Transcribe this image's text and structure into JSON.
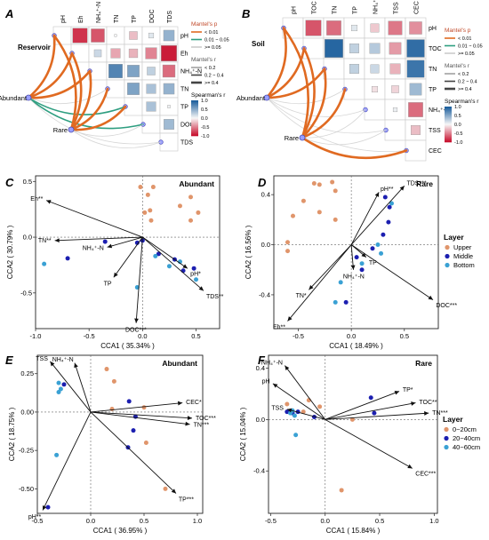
{
  "figure": {
    "panel_labels": [
      "A",
      "B",
      "C",
      "D",
      "E",
      "F"
    ]
  },
  "corr_panels": [
    {
      "label": "A",
      "subset_label": "Reservoir",
      "variables": [
        "pH",
        "Eh",
        "NH₄⁺-N",
        "TN",
        "TP",
        "DOC",
        "TDS"
      ],
      "row_labels": [
        "pH",
        "Eh",
        "NH₄⁺-N",
        "TN",
        "TP",
        "DOC",
        "TDS"
      ],
      "group_nodes": [
        "Abundant",
        "Rare"
      ],
      "spearman": [
        [
          0,
          -0.85,
          -0.7,
          0.02,
          -0.25,
          0.1,
          0.45
        ],
        [
          0,
          0,
          0.2,
          -0.35,
          -0.3,
          -0.5,
          -0.95
        ],
        [
          0,
          0,
          0,
          0.75,
          0.55,
          0.25,
          -0.6
        ],
        [
          0,
          0,
          0,
          0,
          0.55,
          0.35,
          0.45
        ],
        [
          0,
          0,
          0,
          0,
          0,
          0.35,
          0.03
        ],
        [
          0,
          0,
          0,
          0,
          0,
          0,
          0.4
        ],
        [
          0,
          0,
          0,
          0,
          0,
          0,
          0
        ]
      ],
      "mantel_links": [
        {
          "from": "Abundant",
          "to": "pH",
          "p": "<0.01",
          "r": ">=0.4"
        },
        {
          "from": "Abundant",
          "to": "Eh",
          "p": "<0.01",
          "r": ">=0.4"
        },
        {
          "from": "Abundant",
          "to": "NH₄⁺-N",
          "p": "<0.01",
          "r": ">=0.4"
        },
        {
          "from": "Abundant",
          "to": "TN",
          "p": ">=0.05",
          "r": "<0.2"
        },
        {
          "from": "Abundant",
          "to": "TP",
          "p": "0.01-0.05",
          "r": "0.2-0.4"
        },
        {
          "from": "Abundant",
          "to": "DOC",
          "p": "0.01-0.05",
          "r": "0.2-0.4"
        },
        {
          "from": "Abundant",
          "to": "TDS",
          "p": ">=0.05",
          "r": "<0.2"
        },
        {
          "from": "Rare",
          "to": "pH",
          "p": "<0.01",
          "r": ">=0.4"
        },
        {
          "from": "Rare",
          "to": "Eh",
          "p": "<0.01",
          "r": ">=0.4"
        },
        {
          "from": "Rare",
          "to": "NH₄⁺-N",
          "p": "<0.01",
          "r": ">=0.4"
        },
        {
          "from": "Rare",
          "to": "TN",
          "p": "<0.01",
          "r": ">=0.4"
        },
        {
          "from": "Rare",
          "to": "TP",
          "p": "<0.01",
          "r": ">=0.4"
        },
        {
          "from": "Rare",
          "to": "DOC",
          "p": ">=0.05",
          "r": "<0.2"
        },
        {
          "from": "Rare",
          "to": "TDS",
          "p": ">=0.05",
          "r": "<0.2"
        }
      ]
    },
    {
      "label": "B",
      "subset_label": "Soil",
      "variables": [
        "pH",
        "TOC",
        "TN",
        "TP",
        "NH₄⁺-N",
        "TSS",
        "CEC"
      ],
      "row_labels": [
        "pH",
        "TOC",
        "TN",
        "TP",
        "NH₄⁺-N",
        "TSS",
        "CEC"
      ],
      "group_nodes": [
        "Abundant",
        "Rare"
      ],
      "spearman": [
        [
          0,
          -0.7,
          -0.6,
          0.1,
          -0.2,
          -0.55,
          -0.45
        ],
        [
          0,
          0,
          0.95,
          0.25,
          0.3,
          -0.4,
          0.9
        ],
        [
          0,
          0,
          0,
          0.25,
          0.2,
          -0.3,
          0.85
        ],
        [
          0,
          0,
          0,
          0,
          -0.1,
          -0.15,
          0.4
        ],
        [
          0,
          0,
          0,
          0,
          0,
          0.05,
          -0.6
        ],
        [
          0,
          0,
          0,
          0,
          0,
          0,
          -0.25
        ],
        [
          0,
          0,
          0,
          0,
          0,
          0,
          0
        ]
      ],
      "mantel_links": [
        {
          "from": "Abundant",
          "to": "pH",
          "p": "<0.01",
          "r": ">=0.4"
        },
        {
          "from": "Abundant",
          "to": "TOC",
          "p": "<0.01",
          "r": ">=0.4"
        },
        {
          "from": "Abundant",
          "to": "TN",
          "p": "<0.01",
          "r": ">=0.4"
        },
        {
          "from": "Abundant",
          "to": "TP",
          "p": ">=0.05",
          "r": "<0.2"
        },
        {
          "from": "Abundant",
          "to": "NH₄⁺-N",
          "p": ">=0.05",
          "r": "<0.2"
        },
        {
          "from": "Abundant",
          "to": "TSS",
          "p": ">=0.05",
          "r": "<0.2"
        },
        {
          "from": "Abundant",
          "to": "CEC",
          "p": ">=0.05",
          "r": "<0.2"
        },
        {
          "from": "Rare",
          "to": "pH",
          "p": "<0.01",
          "r": ">=0.4"
        },
        {
          "from": "Rare",
          "to": "TOC",
          "p": "<0.01",
          "r": ">=0.4"
        },
        {
          "from": "Rare",
          "to": "TN",
          "p": "<0.01",
          "r": ">=0.4"
        },
        {
          "from": "Rare",
          "to": "TP",
          "p": "<0.01",
          "r": ">=0.4"
        },
        {
          "from": "Rare",
          "to": "NH₄⁺-N",
          "p": ">=0.05",
          "r": "<0.2"
        },
        {
          "from": "Rare",
          "to": "TSS",
          "p": ">=0.05",
          "r": "<0.2"
        },
        {
          "from": "Rare",
          "to": "CEC",
          "p": "<0.01",
          "r": ">=0.4"
        }
      ]
    }
  ],
  "corr_legend": {
    "mantel_p_title": "Mantel's p",
    "mantel_p_items": [
      {
        "label": "< 0.01",
        "color": "#e06a21"
      },
      {
        "label": "0.01 ~ 0.05",
        "color": "#2e9e80"
      },
      {
        "label": ">= 0.05",
        "color": "#cccccc"
      }
    ],
    "mantel_r_title": "Mantel's r",
    "mantel_r_items": [
      "< 0.2",
      "0.2 ~ 0.4",
      ">= 0.4"
    ],
    "spearman_title": "Spearman's r",
    "spearman_ticks": [
      "1.0",
      "0.5",
      "0.0",
      "-0.5",
      "-1.0"
    ],
    "colors": {
      "positive": "#1b5e9c",
      "neutral": "#f7f7f7",
      "negative": "#c8102e"
    }
  },
  "chart_data": [
    {
      "panel": "C",
      "type": "scatter",
      "title": "Abundant",
      "xlabel": "CCA1 ( 35.34% )",
      "ylabel": "CCA2 ( 30.79% )",
      "xlim": [
        -1.0,
        0.72
      ],
      "ylim": [
        -0.82,
        0.55
      ],
      "xticks": [
        -1.0,
        -0.5,
        0.0,
        0.5
      ],
      "yticks": [
        -0.5,
        0.0,
        0.5
      ],
      "xtick_labels": [
        "-1.0",
        "-0.5",
        "0.0",
        "0.5"
      ],
      "ytick_labels": [
        "-0.5",
        "0.0",
        "0.5"
      ],
      "arrows": [
        {
          "label": "Eh**",
          "x": -0.9,
          "y": 0.33
        },
        {
          "label": "TN**",
          "x": -0.82,
          "y": -0.03
        },
        {
          "label": "NH₄⁺-N",
          "x": -0.33,
          "y": -0.09
        },
        {
          "label": "TP",
          "x": -0.27,
          "y": -0.36
        },
        {
          "label": "DOC***",
          "x": -0.06,
          "y": -0.77
        },
        {
          "label": "pH*",
          "x": 0.42,
          "y": -0.28
        },
        {
          "label": "TDS**",
          "x": 0.57,
          "y": -0.48
        }
      ],
      "groups": [
        {
          "name": "Upper",
          "color": "#e0956b",
          "points": [
            [
              -0.02,
              0.45
            ],
            [
              0.05,
              0.38
            ],
            [
              0.1,
              0.45
            ],
            [
              0.35,
              0.28
            ],
            [
              0.45,
              0.36
            ],
            [
              0.52,
              0.22
            ],
            [
              0.02,
              0.22
            ],
            [
              0.07,
              0.24
            ],
            [
              0.08,
              0.15
            ],
            [
              0.45,
              0.15
            ]
          ]
        },
        {
          "name": "Middle",
          "color": "#1c1fb0",
          "points": [
            [
              -0.7,
              -0.19
            ],
            [
              -0.35,
              -0.04
            ],
            [
              -0.05,
              -0.05
            ],
            [
              0.0,
              -0.03
            ],
            [
              0.15,
              -0.15
            ],
            [
              0.3,
              -0.2
            ],
            [
              0.38,
              -0.3
            ],
            [
              0.48,
              -0.28
            ]
          ]
        },
        {
          "name": "Bottom",
          "color": "#3aa1d4",
          "points": [
            [
              -0.92,
              -0.24
            ],
            [
              -0.05,
              -0.45
            ],
            [
              0.12,
              -0.17
            ],
            [
              0.25,
              -0.26
            ],
            [
              0.35,
              -0.22
            ],
            [
              0.5,
              -0.38
            ]
          ]
        }
      ]
    },
    {
      "panel": "D",
      "type": "scatter",
      "title": "Rare",
      "xlabel": "CCA1 ( 18.49% )",
      "ylabel": "CCA2 ( 16.56% )",
      "xlim": [
        -0.73,
        0.82
      ],
      "ylim": [
        -0.67,
        0.55
      ],
      "xticks": [
        -0.5,
        0.0,
        0.5
      ],
      "yticks": [
        -0.4,
        0.0,
        0.4
      ],
      "xtick_labels": [
        "-0.5",
        "0.0",
        "0.5"
      ],
      "ytick_labels": [
        "-0.4",
        "0.0",
        "0.4"
      ],
      "arrows": [
        {
          "label": "pH**",
          "x": 0.26,
          "y": 0.42
        },
        {
          "label": "TDS***",
          "x": 0.5,
          "y": 0.47
        },
        {
          "label": "TP",
          "x": 0.14,
          "y": -0.1
        },
        {
          "label": "NH₄⁺-N",
          "x": 0.02,
          "y": -0.2
        },
        {
          "label": "TN*",
          "x": -0.4,
          "y": -0.36
        },
        {
          "label": "Eh**",
          "x": -0.6,
          "y": -0.61
        },
        {
          "label": "DOC***",
          "x": 0.77,
          "y": -0.44
        }
      ],
      "groups": [
        {
          "name": "Upper",
          "color": "#e0956b",
          "points": [
            [
              -0.35,
              0.49
            ],
            [
              -0.3,
              0.48
            ],
            [
              -0.18,
              0.5
            ],
            [
              -0.15,
              0.43
            ],
            [
              -0.45,
              0.35
            ],
            [
              -0.3,
              0.26
            ],
            [
              -0.55,
              0.23
            ],
            [
              -0.15,
              0.2
            ],
            [
              -0.6,
              0.02
            ],
            [
              -0.6,
              -0.05
            ]
          ]
        },
        {
          "name": "Middle",
          "color": "#1c1fb0",
          "points": [
            [
              0.32,
              0.38
            ],
            [
              0.36,
              0.3
            ],
            [
              0.35,
              0.18
            ],
            [
              0.3,
              0.08
            ],
            [
              0.2,
              -0.03
            ],
            [
              0.05,
              -0.1
            ],
            [
              0.1,
              -0.2
            ],
            [
              -0.05,
              -0.46
            ]
          ]
        },
        {
          "name": "Bottom",
          "color": "#3aa1d4",
          "points": [
            [
              0.38,
              0.33
            ],
            [
              0.25,
              0.0
            ],
            [
              0.28,
              -0.07
            ],
            [
              0.1,
              -0.15
            ],
            [
              -0.1,
              -0.3
            ],
            [
              -0.15,
              -0.46
            ]
          ]
        }
      ],
      "legend": {
        "title": "Layer",
        "items": [
          "Upper",
          "Middle",
          "Bottom"
        ]
      }
    },
    {
      "panel": "E",
      "type": "scatter",
      "title": "Abundant",
      "xlabel": "CCA1 ( 36.95% )",
      "ylabel": "CCA2 ( 18.75% )",
      "xlim": [
        -0.5,
        1.05
      ],
      "ylim": [
        -0.66,
        0.37
      ],
      "xticks": [
        -0.5,
        0.0,
        0.5,
        1.0
      ],
      "yticks": [
        -0.5,
        -0.25,
        0.0,
        0.25
      ],
      "xtick_labels": [
        "-0.5",
        "0.0",
        "0.5",
        "1.0"
      ],
      "ytick_labels": [
        "-0.50",
        "-0.25",
        "0.00",
        "0.25"
      ],
      "arrows": [
        {
          "label": "TSS",
          "x": -0.38,
          "y": 0.33
        },
        {
          "label": "NH₄⁺-N",
          "x": -0.15,
          "y": 0.32
        },
        {
          "label": "CEC*",
          "x": 0.86,
          "y": 0.06
        },
        {
          "label": "TOC***",
          "x": 0.95,
          "y": -0.04
        },
        {
          "label": "TN***",
          "x": 0.93,
          "y": -0.08
        },
        {
          "label": "TP***",
          "x": 0.8,
          "y": -0.53
        },
        {
          "label": "pH**",
          "x": -0.45,
          "y": -0.64
        }
      ],
      "groups": [
        {
          "name": "0~20cm",
          "color": "#e0956b",
          "points": [
            [
              0.15,
              0.28
            ],
            [
              0.22,
              0.2
            ],
            [
              0.2,
              0.02
            ],
            [
              0.5,
              0.03
            ],
            [
              0.52,
              -0.2
            ],
            [
              0.7,
              -0.5
            ]
          ]
        },
        {
          "name": "20~40cm",
          "color": "#1c1fb0",
          "points": [
            [
              -0.25,
              0.18
            ],
            [
              0.36,
              0.07
            ],
            [
              0.42,
              -0.03
            ],
            [
              0.4,
              -0.12
            ],
            [
              0.35,
              -0.23
            ],
            [
              -0.4,
              -0.62
            ]
          ]
        },
        {
          "name": "40~60cm",
          "color": "#3aa1d4",
          "points": [
            [
              -0.3,
              0.19
            ],
            [
              -0.28,
              0.15
            ],
            [
              -0.3,
              0.13
            ],
            [
              -0.32,
              -0.28
            ]
          ]
        }
      ]
    },
    {
      "panel": "F",
      "type": "scatter",
      "title": "Rare",
      "xlabel": "CCA1 ( 15.84% )",
      "ylabel": "CCA2 ( 15.04% )",
      "xlim": [
        -0.52,
        1.03
      ],
      "ylim": [
        -0.73,
        0.5
      ],
      "xticks": [
        -0.5,
        0.0,
        0.5,
        1.0
      ],
      "yticks": [
        -0.4,
        0.0,
        0.4
      ],
      "xtick_labels": [
        "-0.5",
        "0.0",
        "0.5",
        "1.0"
      ],
      "ytick_labels": [
        "-0.4",
        "0.0",
        "0.4"
      ],
      "arrows": [
        {
          "label": "NH₄⁺-N",
          "x": -0.37,
          "y": 0.42
        },
        {
          "label": "pH",
          "x": -0.48,
          "y": 0.28
        },
        {
          "label": "TSS",
          "x": -0.35,
          "y": 0.08
        },
        {
          "label": "TP*",
          "x": 0.68,
          "y": 0.22
        },
        {
          "label": "TOC**",
          "x": 0.83,
          "y": 0.13
        },
        {
          "label": "TN***",
          "x": 0.95,
          "y": 0.05
        },
        {
          "label": "CEC***",
          "x": 0.8,
          "y": -0.38
        }
      ],
      "groups": [
        {
          "name": "0~20cm",
          "color": "#e0956b",
          "points": [
            [
              -0.35,
              0.12
            ],
            [
              -0.15,
              0.15
            ],
            [
              -0.05,
              0.1
            ],
            [
              -0.2,
              0.06
            ],
            [
              0.25,
              0.0
            ],
            [
              0.15,
              -0.55
            ]
          ]
        },
        {
          "name": "20~40cm",
          "color": "#1c1fb0",
          "points": [
            [
              -0.35,
              0.06
            ],
            [
              -0.3,
              0.05
            ],
            [
              -0.25,
              0.06
            ],
            [
              -0.1,
              0.02
            ],
            [
              0.42,
              0.17
            ],
            [
              0.45,
              0.05
            ]
          ]
        },
        {
          "name": "40~60cm",
          "color": "#3aa1d4",
          "points": [
            [
              -0.32,
              0.05
            ],
            [
              -0.28,
              0.03
            ],
            [
              -0.3,
              0.07
            ],
            [
              -0.27,
              -0.12
            ]
          ]
        }
      ],
      "legend": {
        "title": "Layer",
        "items": [
          "0~20cm",
          "20~40cm",
          "40~60cm"
        ]
      }
    }
  ]
}
